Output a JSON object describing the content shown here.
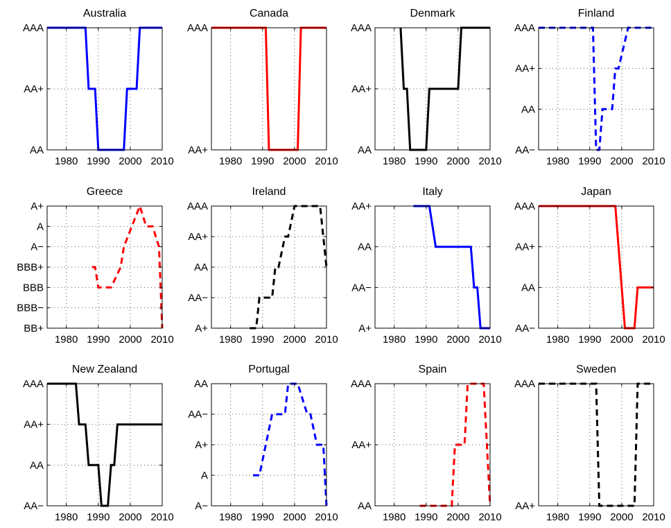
{
  "chart_data": [
    {
      "type": "line",
      "title": "Australia",
      "ylabels": [
        "AA",
        "AA+",
        "AAA"
      ],
      "xticks": [
        1980,
        1990,
        2000,
        2010
      ],
      "xlim": [
        1974,
        2010
      ],
      "color": "#0000ff",
      "style": "solid",
      "grid": true,
      "series": [
        {
          "x": [
            1974,
            1986,
            1987,
            1989,
            1990,
            1998,
            1999,
            2002,
            2003,
            2010
          ],
          "y": [
            2,
            2,
            1,
            1,
            0,
            0,
            1,
            1,
            2,
            2
          ]
        }
      ]
    },
    {
      "type": "line",
      "title": "Canada",
      "ylabels": [
        "AA+",
        "AAA"
      ],
      "xticks": [
        1980,
        1990,
        2000,
        2010
      ],
      "xlim": [
        1974,
        2010
      ],
      "color": "#ff0000",
      "style": "solid",
      "grid": true,
      "series": [
        {
          "x": [
            1974,
            1991,
            1992,
            2001,
            2002,
            2010
          ],
          "y": [
            1,
            1,
            0,
            0,
            1,
            1
          ]
        }
      ]
    },
    {
      "type": "line",
      "title": "Denmark",
      "ylabels": [
        "AA",
        "AA+",
        "AAA"
      ],
      "xticks": [
        1980,
        1990,
        2000,
        2010
      ],
      "xlim": [
        1974,
        2010
      ],
      "color": "#000000",
      "style": "solid",
      "grid": true,
      "series": [
        {
          "x": [
            1982,
            1983,
            1984,
            1985,
            1990,
            1991,
            2000,
            2001,
            2010
          ],
          "y": [
            2,
            1,
            1,
            0,
            0,
            1,
            1,
            2,
            2
          ]
        }
      ]
    },
    {
      "type": "line",
      "title": "Finland",
      "ylabels": [
        "AA−",
        "AA",
        "AA+",
        "AAA"
      ],
      "xticks": [
        1980,
        1990,
        2000,
        2010
      ],
      "xlim": [
        1974,
        2010
      ],
      "color": "#0000ff",
      "style": "dashed",
      "grid": true,
      "series": [
        {
          "x": [
            1974,
            1991,
            1992,
            1993,
            1994,
            1996,
            1997,
            1998,
            1999,
            2002,
            2010
          ],
          "y": [
            3,
            3,
            0,
            0,
            1,
            1,
            1,
            2,
            2,
            3,
            3
          ]
        }
      ]
    },
    {
      "type": "line",
      "title": "Greece",
      "ylabels": [
        "BB+",
        "BBB−",
        "BBB",
        "BBB+",
        "A−",
        "A",
        "A+"
      ],
      "xticks": [
        1980,
        1990,
        2000,
        2010
      ],
      "xlim": [
        1974,
        2010
      ],
      "color": "#ff0000",
      "style": "dashed",
      "grid": true,
      "series": [
        {
          "x": [
            1988,
            1989,
            1990,
            1994,
            1997,
            1998,
            2003,
            2005,
            2007,
            2009,
            2010
          ],
          "y": [
            3,
            3,
            2,
            2,
            3,
            4,
            6,
            5,
            5,
            4,
            0
          ]
        }
      ]
    },
    {
      "type": "line",
      "title": "Ireland",
      "ylabels": [
        "A+",
        "AA−",
        "AA",
        "AA+",
        "AAA"
      ],
      "xticks": [
        1980,
        1990,
        2000,
        2010
      ],
      "xlim": [
        1974,
        2010
      ],
      "color": "#000000",
      "style": "dashed",
      "grid": true,
      "series": [
        {
          "x": [
            1986,
            1988,
            1989,
            1991,
            1993,
            1994,
            1995,
            1997,
            1998,
            2000,
            2001,
            2008,
            2010
          ],
          "y": [
            0,
            0,
            1,
            1,
            1,
            2,
            2,
            3,
            3,
            4,
            4,
            4,
            2
          ]
        }
      ]
    },
    {
      "type": "line",
      "title": "Italy",
      "ylabels": [
        "A+",
        "AA−",
        "AA",
        "AA+"
      ],
      "xticks": [
        1980,
        1990,
        2000,
        2010
      ],
      "xlim": [
        1974,
        2010
      ],
      "color": "#0000ff",
      "style": "solid",
      "grid": true,
      "series": [
        {
          "x": [
            1986,
            1991,
            1993,
            2004,
            2005,
            2006,
            2007,
            2010
          ],
          "y": [
            3,
            3,
            2,
            2,
            1,
            1,
            0,
            0
          ]
        }
      ]
    },
    {
      "type": "line",
      "title": "Japan",
      "ylabels": [
        "AA−",
        "AA",
        "AA+",
        "AAA"
      ],
      "xticks": [
        1980,
        1990,
        2000,
        2010
      ],
      "xlim": [
        1974,
        2010
      ],
      "color": "#ff0000",
      "style": "solid",
      "grid": true,
      "series": [
        {
          "x": [
            1974,
            1998,
            2001,
            2002,
            2004,
            2005,
            2007,
            2010
          ],
          "y": [
            3,
            3,
            0,
            0,
            0,
            1,
            1,
            1
          ]
        }
      ]
    },
    {
      "type": "line",
      "title": "New Zealand",
      "ylabels": [
        "AA−",
        "AA",
        "AA+",
        "AAA"
      ],
      "xticks": [
        1980,
        1990,
        2000,
        2010
      ],
      "xlim": [
        1974,
        2010
      ],
      "color": "#000000",
      "style": "solid",
      "grid": true,
      "series": [
        {
          "x": [
            1974,
            1983,
            1984,
            1986,
            1987,
            1990,
            1991,
            1993,
            1994,
            1995,
            1996,
            2010
          ],
          "y": [
            3,
            3,
            2,
            2,
            1,
            1,
            0,
            0,
            1,
            1,
            2,
            2
          ]
        }
      ]
    },
    {
      "type": "line",
      "title": "Portugal",
      "ylabels": [
        "A−",
        "A",
        "A+",
        "AA−",
        "AA"
      ],
      "xticks": [
        1980,
        1990,
        2000,
        2010
      ],
      "xlim": [
        1974,
        2010
      ],
      "color": "#0000ff",
      "style": "dashed",
      "grid": true,
      "series": [
        {
          "x": [
            1987,
            1989,
            1991,
            1993,
            1995,
            1997,
            1998,
            2001,
            2004,
            2005,
            2007,
            2009,
            2010
          ],
          "y": [
            1,
            1,
            2,
            3,
            3,
            3,
            4,
            4,
            3,
            3,
            2,
            2,
            0
          ]
        }
      ]
    },
    {
      "type": "line",
      "title": "Spain",
      "ylabels": [
        "AA",
        "AA+",
        "AAA"
      ],
      "xticks": [
        1980,
        1990,
        2000,
        2010
      ],
      "xlim": [
        1974,
        2010
      ],
      "color": "#ff0000",
      "style": "dashed",
      "grid": true,
      "series": [
        {
          "x": [
            1988,
            1998,
            1999,
            2000,
            2002,
            2003,
            2004,
            2008,
            2010
          ],
          "y": [
            0,
            0,
            1,
            1,
            1,
            2,
            2,
            2,
            0
          ]
        }
      ]
    },
    {
      "type": "line",
      "title": "Sweden",
      "ylabels": [
        "AA+",
        "AAA"
      ],
      "xticks": [
        1980,
        1990,
        2000,
        2010
      ],
      "xlim": [
        1974,
        2010
      ],
      "color": "#000000",
      "style": "dashed",
      "grid": true,
      "series": [
        {
          "x": [
            1974,
            1992,
            1993,
            2004,
            2005,
            2010
          ],
          "y": [
            1,
            1,
            0,
            0,
            1,
            1
          ]
        }
      ]
    }
  ]
}
